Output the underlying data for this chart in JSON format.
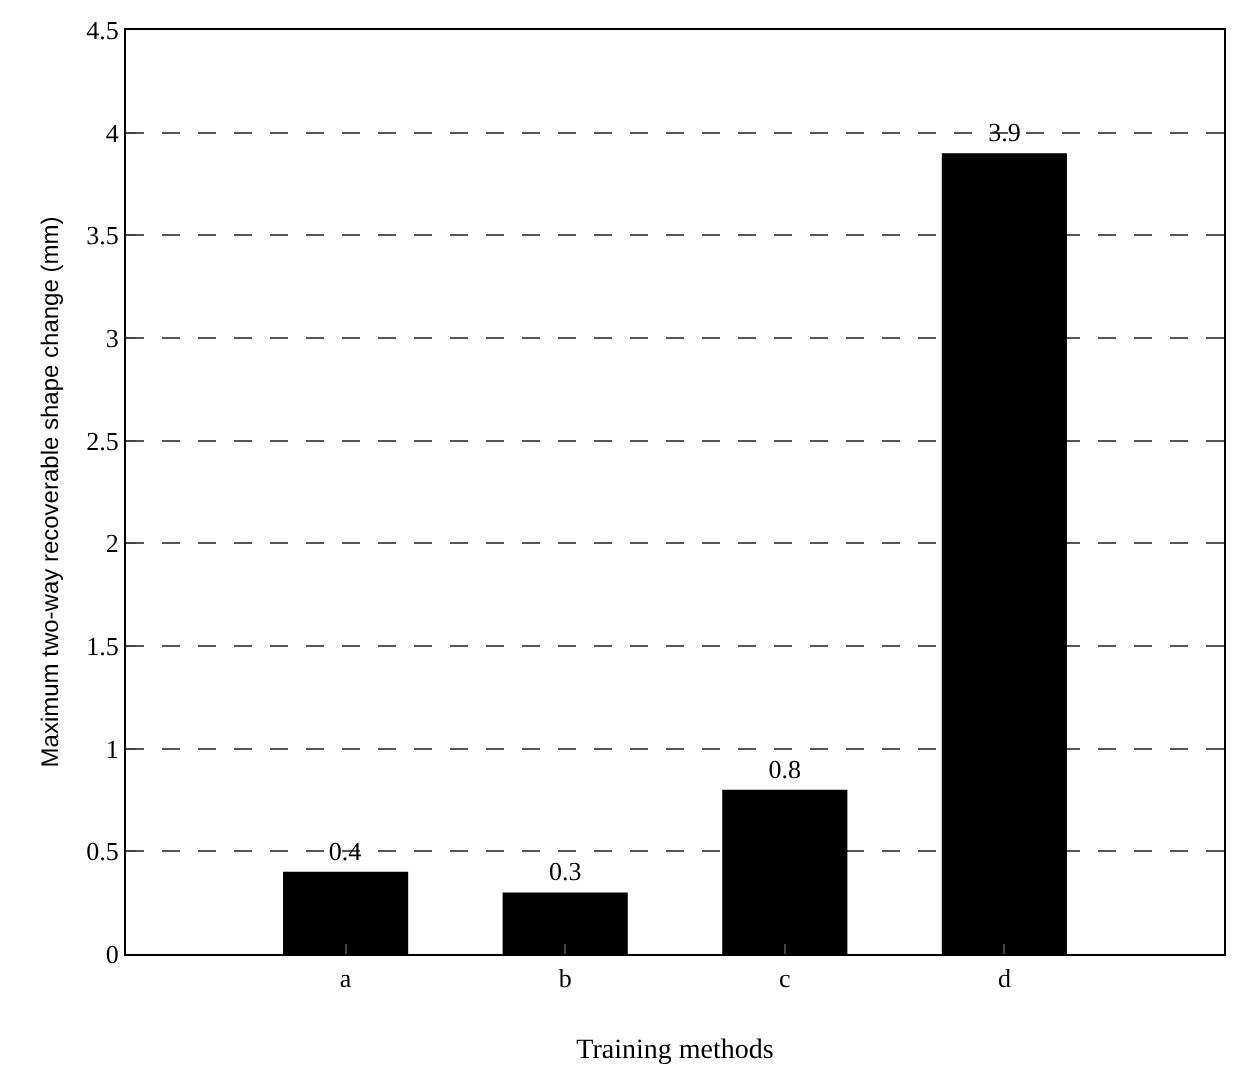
{
  "chart_data": {
    "type": "bar",
    "xlabel": "Training methods",
    "ylabel": "Maximum two-way recoverable shape change (mm)",
    "categories": [
      "a",
      "b",
      "c",
      "d"
    ],
    "values": [
      0.4,
      0.3,
      0.8,
      3.9
    ],
    "color": "#000000",
    "ylim": [
      0,
      4.5
    ],
    "yticks": [
      0,
      0.5,
      1,
      1.5,
      2,
      2.5,
      3,
      3.5,
      4,
      4.5
    ],
    "grid": "y",
    "data_labels": true
  }
}
